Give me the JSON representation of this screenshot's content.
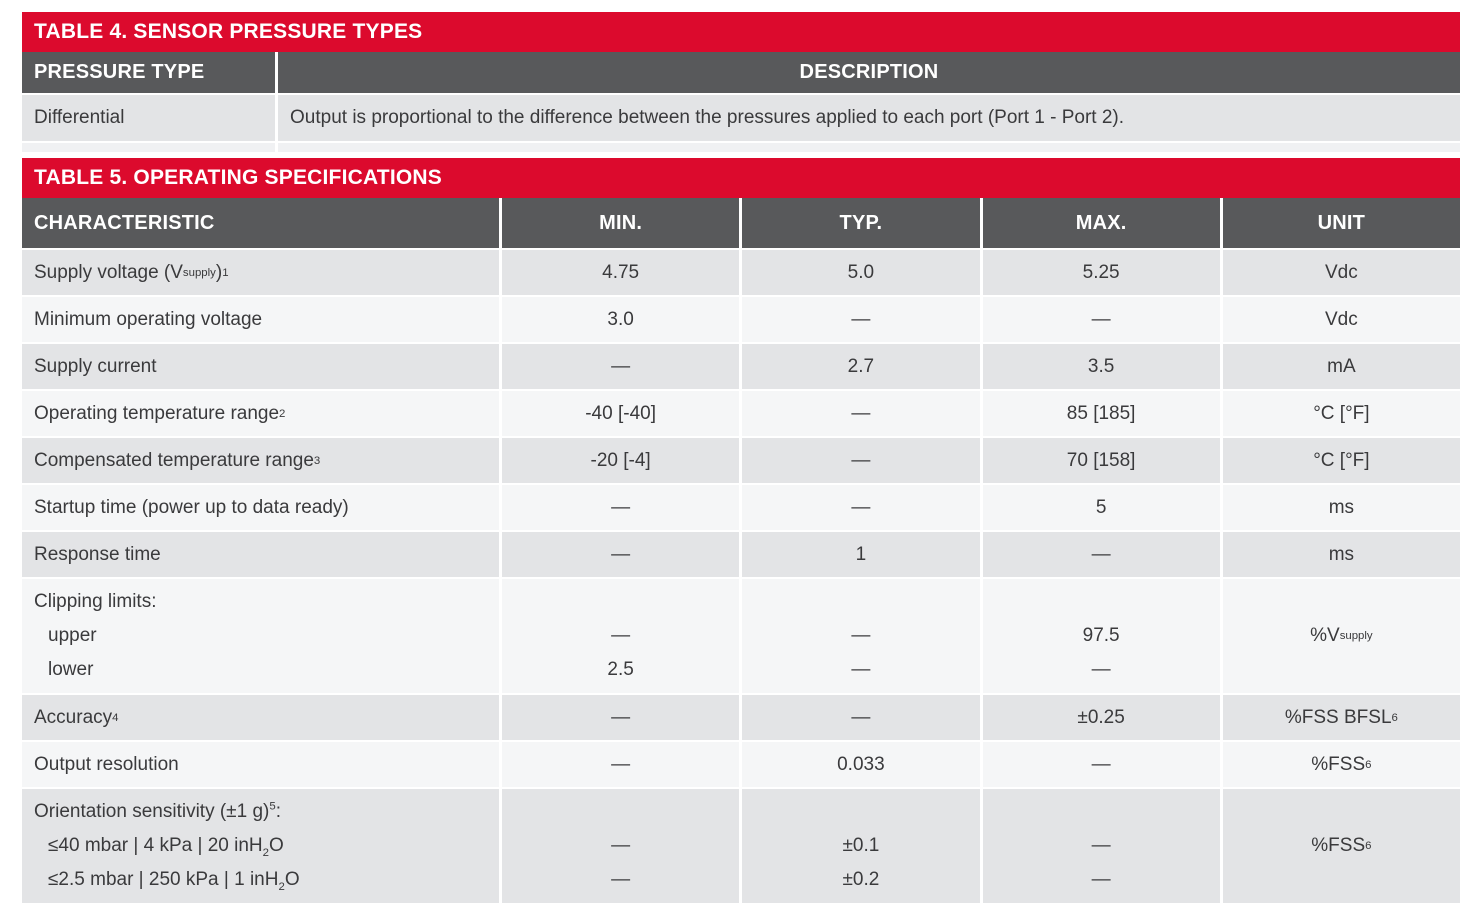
{
  "colors": {
    "accent_red": "#DC0A2D",
    "header_gray": "#58595B",
    "row_gray": "#E3E4E6",
    "row_light": "#F5F6F7",
    "text": "#3A3A3C"
  },
  "table4": {
    "title": "TABLE 4. SENSOR PRESSURE TYPES",
    "columns": [
      "PRESSURE TYPE",
      "DESCRIPTION"
    ],
    "rows": [
      {
        "type": "Differential",
        "description": "Output is proportional to the difference between the pressures applied to each port (Port 1 - Port 2)."
      }
    ]
  },
  "table5": {
    "title": "TABLE 5. OPERATING SPECIFICATIONS",
    "columns": [
      "CHARACTERISTIC",
      "MIN.",
      "TYP.",
      "MAX.",
      "UNIT"
    ],
    "rows": [
      {
        "c": "Supply voltage (V~supply~)^1^",
        "min": "4.75",
        "typ": "5.0",
        "max": "5.25",
        "unit": "Vdc"
      },
      {
        "c": "Minimum operating voltage",
        "min": "3.0",
        "typ": "—",
        "max": "—",
        "unit": "Vdc"
      },
      {
        "c": "Supply current",
        "min": "—",
        "typ": "2.7",
        "max": "3.5",
        "unit": "mA"
      },
      {
        "c": "Operating temperature range^2^",
        "min": "-40 [-40]",
        "typ": "—",
        "max": "85 [185]",
        "unit": "°C [°F]"
      },
      {
        "c": "Compensated temperature range^3^",
        "min": "-20 [-4]",
        "typ": "—",
        "max": "70 [158]",
        "unit": "°C [°F]"
      },
      {
        "c": "Startup time (power up to data ready)",
        "min": "—",
        "typ": "—",
        "max": "5",
        "unit": "ms"
      },
      {
        "c": "Response time",
        "min": "—",
        "typ": "1",
        "max": "—",
        "unit": "ms"
      },
      {
        "lines": [
          "Clipping limits:",
          "upper",
          "lower"
        ],
        "min": [
          "",
          "—",
          "2.5"
        ],
        "typ": [
          "",
          "—",
          "—"
        ],
        "max": [
          "",
          "97.5",
          "—"
        ],
        "unit": "%V~supply~"
      },
      {
        "c": "Accuracy^4^",
        "min": "—",
        "typ": "—",
        "max": "±0.25",
        "unit": "%FSS BFSL^6^"
      },
      {
        "c": "Output resolution",
        "min": "—",
        "typ": "0.033",
        "max": "—",
        "unit": "%FSS^6^"
      },
      {
        "lines": [
          "Orientation sensitivity (±1 g)^5^:",
          "≤40 mbar | 4 kPa | 20 inH~2~O",
          "≤2.5 mbar | 250 kPa | 1 inH~2~O"
        ],
        "min": [
          "",
          "—",
          "—"
        ],
        "typ": [
          "",
          "±0.1",
          "±0.2"
        ],
        "max": [
          "",
          "—",
          "—"
        ],
        "unit": "%FSS^6^"
      }
    ]
  }
}
